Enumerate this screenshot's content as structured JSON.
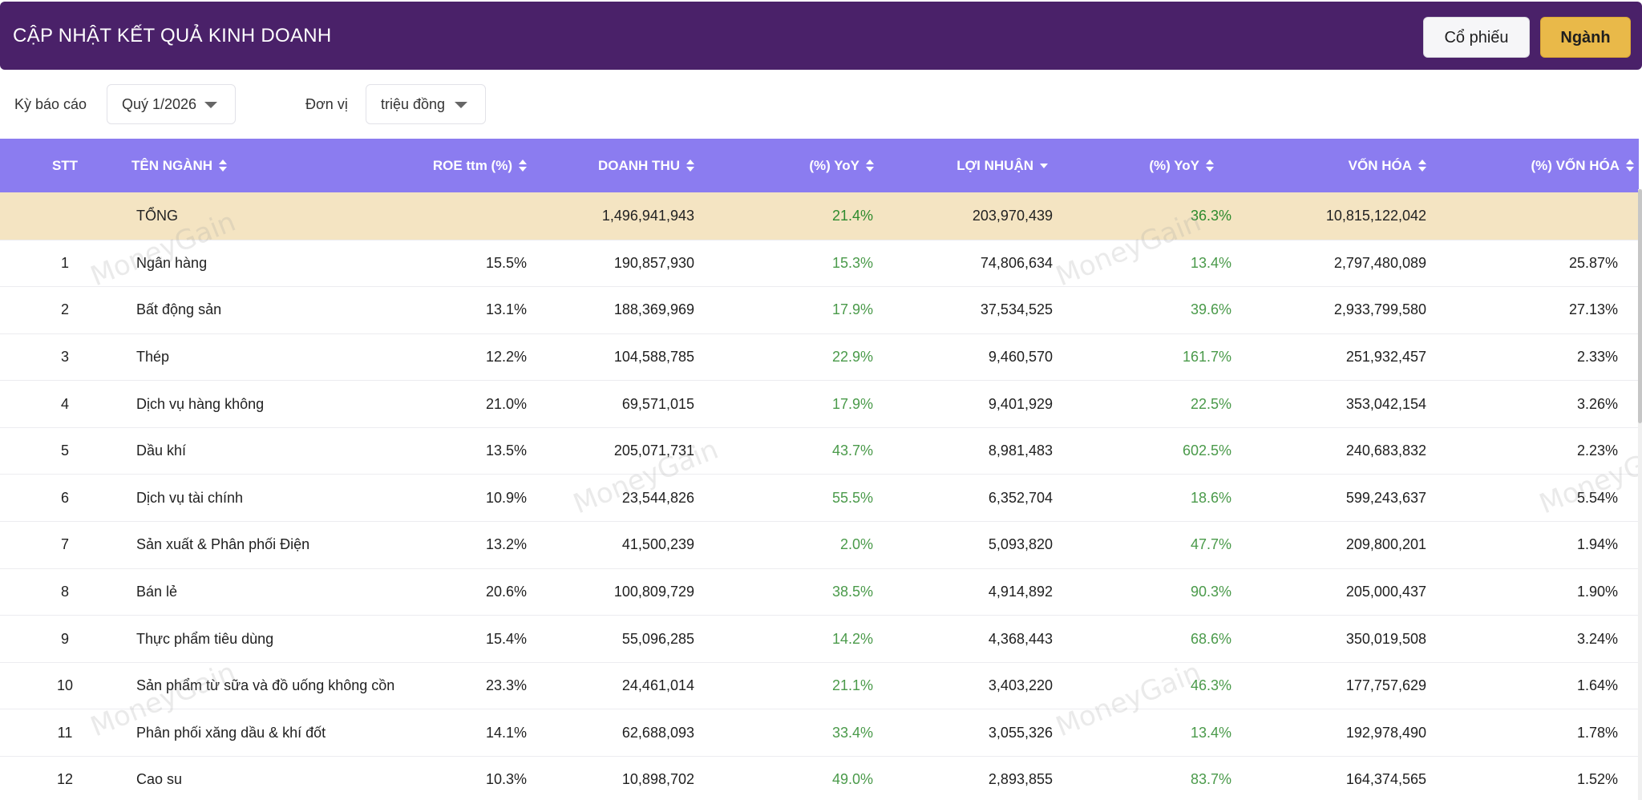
{
  "header": {
    "title": "CẬP NHẬT KẾT QUẢ KINH DOANH",
    "btn_stock": "Cổ phiếu",
    "btn_sector": "Ngành"
  },
  "filters": {
    "period_label": "Kỳ báo cáo",
    "period_value": "Quý 1/2026",
    "unit_label": "Đơn vị",
    "unit_value": "triệu đồng"
  },
  "table": {
    "columns": [
      "STT",
      "TÊN NGÀNH",
      "ROE ttm (%)",
      "DOANH THU",
      "(%) YoY",
      "LỢI NHUẬN",
      "(%) YoY",
      "VỐN HÓA",
      "(%) VỐN HÓA"
    ],
    "total": {
      "name": "TỔNG",
      "revenue": "1,496,941,943",
      "rev_yoy": "21.4%",
      "profit": "203,970,439",
      "profit_yoy": "36.3%",
      "market_cap": "10,815,122,042"
    },
    "rows": [
      {
        "stt": "1",
        "name": "Ngân hàng",
        "roe": "15.5%",
        "revenue": "190,857,930",
        "rev_yoy": "15.3%",
        "profit": "74,806,634",
        "profit_yoy": "13.4%",
        "market_cap": "2,797,480,089",
        "cap_pct": "25.87%"
      },
      {
        "stt": "2",
        "name": "Bất động sản",
        "roe": "13.1%",
        "revenue": "188,369,969",
        "rev_yoy": "17.9%",
        "profit": "37,534,525",
        "profit_yoy": "39.6%",
        "market_cap": "2,933,799,580",
        "cap_pct": "27.13%"
      },
      {
        "stt": "3",
        "name": "Thép",
        "roe": "12.2%",
        "revenue": "104,588,785",
        "rev_yoy": "22.9%",
        "profit": "9,460,570",
        "profit_yoy": "161.7%",
        "market_cap": "251,932,457",
        "cap_pct": "2.33%"
      },
      {
        "stt": "4",
        "name": "Dịch vụ hàng không",
        "roe": "21.0%",
        "revenue": "69,571,015",
        "rev_yoy": "17.9%",
        "profit": "9,401,929",
        "profit_yoy": "22.5%",
        "market_cap": "353,042,154",
        "cap_pct": "3.26%"
      },
      {
        "stt": "5",
        "name": "Dầu khí",
        "roe": "13.5%",
        "revenue": "205,071,731",
        "rev_yoy": "43.7%",
        "profit": "8,981,483",
        "profit_yoy": "602.5%",
        "market_cap": "240,683,832",
        "cap_pct": "2.23%"
      },
      {
        "stt": "6",
        "name": "Dịch vụ tài chính",
        "roe": "10.9%",
        "revenue": "23,544,826",
        "rev_yoy": "55.5%",
        "profit": "6,352,704",
        "profit_yoy": "18.6%",
        "market_cap": "599,243,637",
        "cap_pct": "5.54%"
      },
      {
        "stt": "7",
        "name": "Sản xuất & Phân phối Điện",
        "roe": "13.2%",
        "revenue": "41,500,239",
        "rev_yoy": "2.0%",
        "profit": "5,093,820",
        "profit_yoy": "47.7%",
        "market_cap": "209,800,201",
        "cap_pct": "1.94%"
      },
      {
        "stt": "8",
        "name": "Bán lẻ",
        "roe": "20.6%",
        "revenue": "100,809,729",
        "rev_yoy": "38.5%",
        "profit": "4,914,892",
        "profit_yoy": "90.3%",
        "market_cap": "205,000,437",
        "cap_pct": "1.90%"
      },
      {
        "stt": "9",
        "name": "Thực phẩm tiêu dùng",
        "roe": "15.4%",
        "revenue": "55,096,285",
        "rev_yoy": "14.2%",
        "profit": "4,368,443",
        "profit_yoy": "68.6%",
        "market_cap": "350,019,508",
        "cap_pct": "3.24%"
      },
      {
        "stt": "10",
        "name": "Sản phẩm từ sữa và đồ uống không cồn",
        "roe": "23.3%",
        "revenue": "24,461,014",
        "rev_yoy": "21.1%",
        "profit": "3,403,220",
        "profit_yoy": "46.3%",
        "market_cap": "177,757,629",
        "cap_pct": "1.64%"
      },
      {
        "stt": "11",
        "name": "Phân phối xăng dầu & khí đốt",
        "roe": "14.1%",
        "revenue": "62,688,093",
        "rev_yoy": "33.4%",
        "profit": "3,055,326",
        "profit_yoy": "13.4%",
        "market_cap": "192,978,490",
        "cap_pct": "1.78%"
      },
      {
        "stt": "12",
        "name": "Cao su",
        "roe": "10.3%",
        "revenue": "10,898,702",
        "rev_yoy": "49.0%",
        "profit": "2,893,855",
        "profit_yoy": "83.7%",
        "market_cap": "164,374,565",
        "cap_pct": "1.52%"
      }
    ]
  },
  "watermark": "MoneyGain",
  "colors": {
    "header_bg": "#4a2169",
    "table_header_bg": "#8b7cf0",
    "total_row_bg": "#f4e4c2",
    "accent_button": "#e9b949",
    "positive_text": "#4a9a4a"
  }
}
